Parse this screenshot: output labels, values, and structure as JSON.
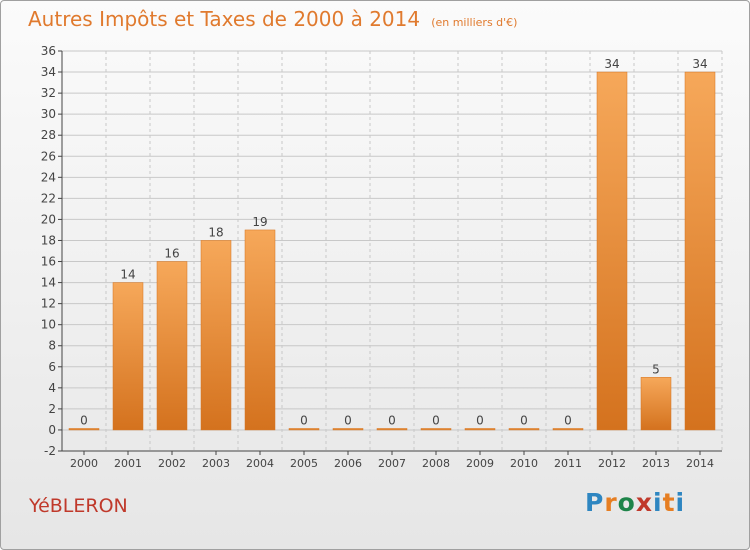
{
  "title": "Autres Impôts et Taxes de 2000 à 2014",
  "subtitle": "(en milliers d'€)",
  "commune": "YéBLERON",
  "logo": {
    "text": "Proxiti",
    "colors": [
      "#2e86c1",
      "#e67e22",
      "#1e8449",
      "#c0392b",
      "#2e86c1",
      "#e67e22",
      "#2e86c1"
    ]
  },
  "colors": {
    "bar_light": "#f6a85a",
    "bar_dark": "#d4721e",
    "text_accent": "#e07a2e",
    "axis": "#444444",
    "grid": "#c8c8c8"
  },
  "chart_data": {
    "type": "bar",
    "title": "Autres Impôts et Taxes de 2000 à 2014",
    "categories": [
      "2000",
      "2001",
      "2002",
      "2003",
      "2004",
      "2005",
      "2006",
      "2007",
      "2008",
      "2009",
      "2010",
      "2011",
      "2012",
      "2013",
      "2014"
    ],
    "values": [
      0,
      14,
      16,
      18,
      19,
      0,
      0,
      0,
      0,
      0,
      0,
      0,
      34,
      5,
      34
    ],
    "ylim": [
      -2,
      36
    ],
    "yticks": [
      -2,
      0,
      2,
      4,
      6,
      8,
      10,
      12,
      14,
      16,
      18,
      20,
      22,
      24,
      26,
      28,
      30,
      32,
      34,
      36
    ],
    "grid": true,
    "data_labels": true
  }
}
